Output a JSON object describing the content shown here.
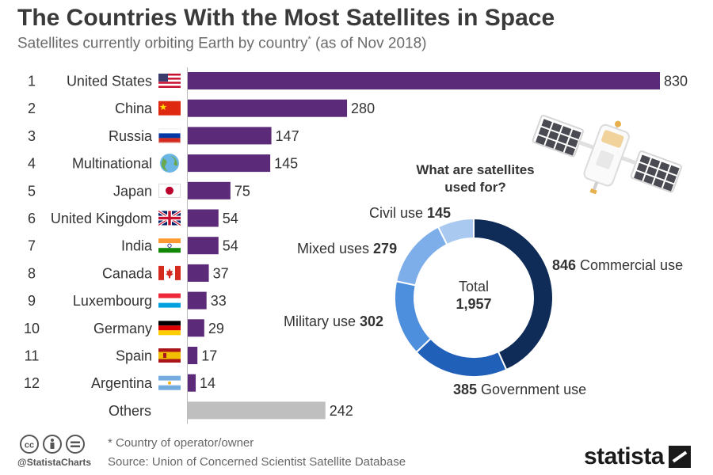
{
  "header": {
    "title": "The Countries With the Most Satellites in Space",
    "subtitle": "Satellites currently orbiting Earth by country",
    "subtitle_mark": "*",
    "subtitle_suffix": " (as of Nov 2018)"
  },
  "colors": {
    "bar": "#5b2a78",
    "others_bar": "#bfbfbf",
    "donut": [
      "#0f2b57",
      "#2160b8",
      "#4d8fdc",
      "#7eaeea",
      "#a9c9f1"
    ]
  },
  "chart_data": [
    {
      "type": "bar",
      "orientation": "horizontal",
      "ranks": [
        "1",
        "2",
        "3",
        "4",
        "5",
        "6",
        "7",
        "8",
        "9",
        "10",
        "11",
        "12",
        ""
      ],
      "categories": [
        "United States",
        "China",
        "Russia",
        "Multinational",
        "Japan",
        "United Kingdom",
        "India",
        "Canada",
        "Luxembourg",
        "Germany",
        "Spain",
        "Argentina",
        "Others"
      ],
      "flags": [
        "us-flag-icon",
        "china-flag-icon",
        "russia-flag-icon",
        "globe-icon",
        "japan-flag-icon",
        "uk-flag-icon",
        "india-flag-icon",
        "canada-flag-icon",
        "luxembourg-flag-icon",
        "germany-flag-icon",
        "spain-flag-icon",
        "argentina-flag-icon",
        ""
      ],
      "values": [
        830,
        280,
        147,
        145,
        75,
        54,
        54,
        37,
        33,
        29,
        17,
        14,
        242
      ]
    },
    {
      "type": "pie",
      "variant": "donut",
      "title": "What are satellites used for?",
      "center_label": "Total",
      "center_value": "1,957",
      "slices": [
        {
          "name": "Commercial use",
          "value": 846,
          "value_label": "846",
          "value_first": true
        },
        {
          "name": "Government use",
          "value": 385,
          "value_label": "385",
          "value_first": true
        },
        {
          "name": "Military use",
          "value": 302,
          "value_label": "302",
          "value_first": false
        },
        {
          "name": "Mixed uses",
          "value": 279,
          "value_label": "279",
          "value_first": false
        },
        {
          "name": "Civil use",
          "value": 145,
          "value_label": "145",
          "value_first": false
        }
      ]
    }
  ],
  "footer": {
    "note": "* Country of operator/owner",
    "source": "Source: Union of Concerned Scientist Satellite Database",
    "handle": "@StatistaCharts",
    "brand": "statista"
  },
  "icons": [
    "satellite-icon",
    "cc-license-icon",
    "attribution-icon",
    "no-derivatives-icon"
  ]
}
